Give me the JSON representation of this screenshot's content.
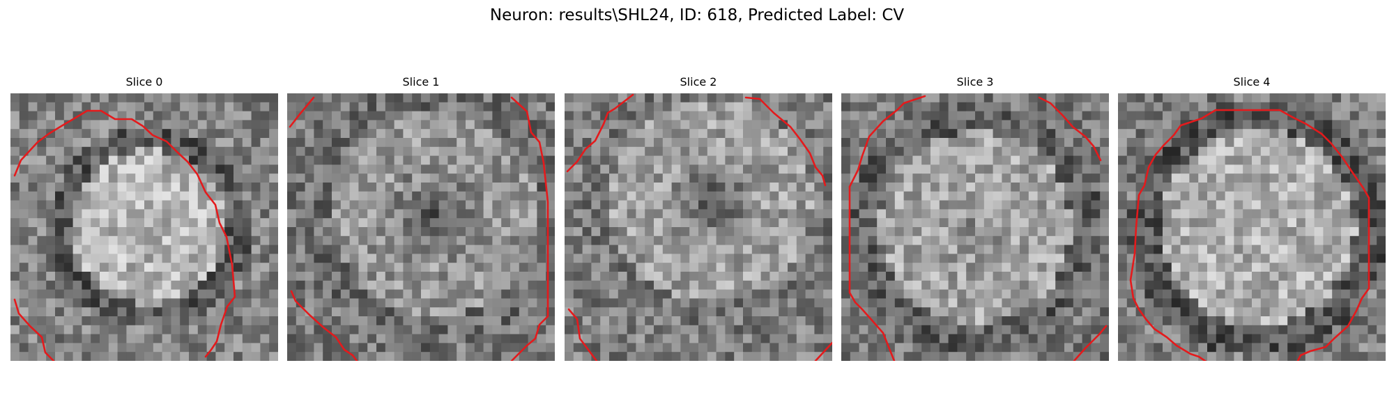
{
  "figure": {
    "title": "Neuron: results\\SHL24, ID: 618, Predicted Label: CV",
    "outline_color": "#e41a1c"
  },
  "panels": [
    {
      "title": "Slice 0"
    },
    {
      "title": "Slice 1"
    },
    {
      "title": "Slice 2"
    },
    {
      "title": "Slice 3"
    },
    {
      "title": "Slice 4"
    }
  ]
}
